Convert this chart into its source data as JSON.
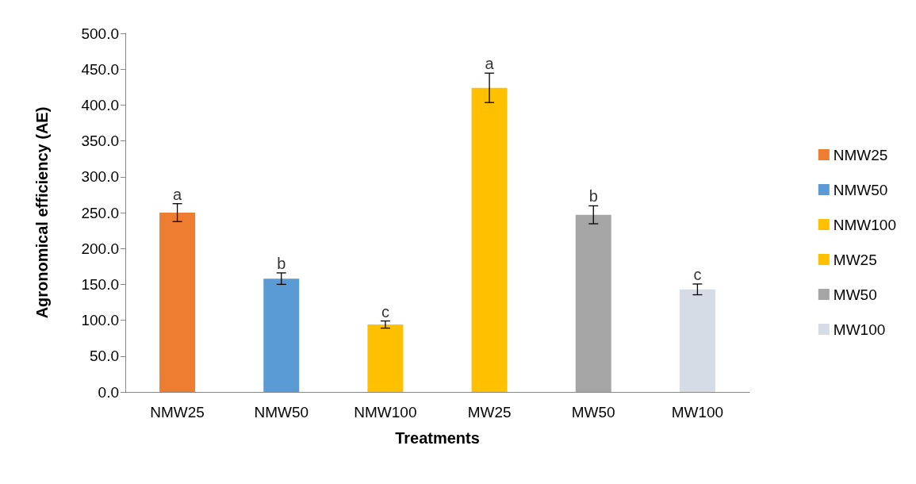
{
  "chart_data": {
    "type": "bar",
    "xlabel": "Treatments",
    "ylabel": "Agronomical efficiency (AE)",
    "categories": [
      "NMW25",
      "NMW50",
      "NMW100",
      "MW25",
      "MW50",
      "MW100"
    ],
    "series": [
      {
        "name": "NMW25",
        "color": "#ed7d31",
        "values": [
          250,
          null,
          null,
          null,
          null,
          null
        ],
        "errors": [
          12.5,
          null,
          null,
          null,
          null,
          null
        ]
      },
      {
        "name": "NMW50",
        "color": "#5b9bd5",
        "values": [
          null,
          158,
          null,
          null,
          null,
          null
        ],
        "errors": [
          null,
          8,
          null,
          null,
          null,
          null
        ]
      },
      {
        "name": "NMW100",
        "color": "#ffc000",
        "values": [
          null,
          null,
          94,
          null,
          null,
          null
        ],
        "errors": [
          null,
          null,
          5,
          null,
          null,
          null
        ]
      },
      {
        "name": "MW25",
        "color": "#ffc000",
        "values": [
          null,
          null,
          null,
          424,
          null,
          null
        ],
        "errors": [
          null,
          null,
          null,
          20.5,
          null,
          null
        ]
      },
      {
        "name": "MW50",
        "color": "#a5a5a5",
        "values": [
          null,
          null,
          null,
          null,
          247,
          null
        ],
        "errors": [
          null,
          null,
          null,
          null,
          12.5,
          null
        ]
      },
      {
        "name": "MW100",
        "color": "#d6dce5",
        "values": [
          null,
          null,
          null,
          null,
          null,
          143
        ],
        "errors": [
          null,
          null,
          null,
          null,
          null,
          7.5
        ]
      }
    ],
    "annotations": [
      {
        "text": "a",
        "x": "NMW25",
        "y": 262.5
      },
      {
        "text": "b",
        "x": "NMW50",
        "y": 166
      },
      {
        "text": "c",
        "x": "NMW100",
        "y": 99
      },
      {
        "text": "a",
        "x": "MW25",
        "y": 444.5
      },
      {
        "text": "b",
        "x": "MW50",
        "y": 259.5
      },
      {
        "text": "c",
        "x": "MW100",
        "y": 150.5
      }
    ],
    "ylim": [
      0,
      500
    ],
    "yticks": [
      {
        "value": 0,
        "label": "0.0"
      },
      {
        "value": 50,
        "label": "50.0"
      },
      {
        "value": 100,
        "label": "100.0"
      },
      {
        "value": 150,
        "label": "150.0"
      },
      {
        "value": 200,
        "label": "200.0"
      },
      {
        "value": 250,
        "label": "250.0"
      },
      {
        "value": 300,
        "label": "300.0"
      },
      {
        "value": 350,
        "label": "350.0"
      },
      {
        "value": 400,
        "label": "400.0"
      },
      {
        "value": 450,
        "label": "450.0"
      },
      {
        "value": 500,
        "label": "500.0"
      }
    ],
    "grid": false,
    "legend": "right"
  }
}
